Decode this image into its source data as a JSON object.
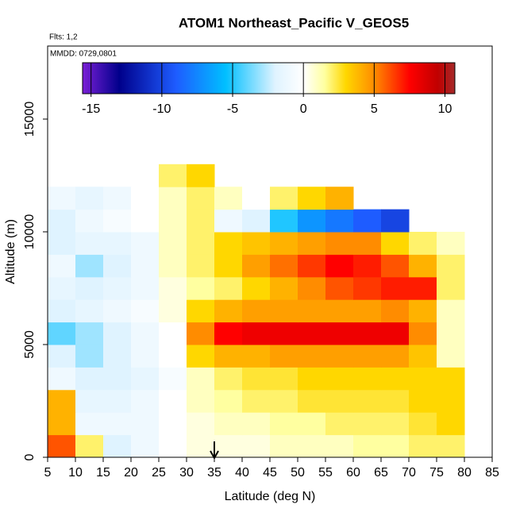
{
  "chart_data": {
    "type": "heatmap",
    "title": "ATOM1 Northeast_Pacific V_GEOS5",
    "subtitle": "Flts: 1,2",
    "annotation": "MMDD: 0729,0801",
    "x_label": "Latitude (deg N)",
    "y_label": "Altitude (m)",
    "xlim": [
      5,
      85
    ],
    "ylim": [
      0,
      18240
    ],
    "xticks": [
      5,
      10,
      15,
      20,
      25,
      30,
      35,
      40,
      45,
      50,
      55,
      60,
      65,
      70,
      75,
      80,
      85
    ],
    "yticks": [
      0,
      5000,
      10000,
      15000
    ],
    "x_bins": [
      5,
      10,
      15,
      20,
      25,
      30,
      35,
      40,
      45,
      50,
      55,
      60,
      65,
      70,
      75,
      80
    ],
    "y_bins": [
      0,
      1000,
      2000,
      3000,
      4000,
      5000,
      6000,
      7000,
      8000,
      9000,
      10000,
      11000,
      12000,
      13000
    ],
    "z": [
      [
        6,
        2,
        -2,
        -1,
        0,
        0.5,
        0.5,
        0.5,
        1,
        1,
        1,
        1.5,
        1.5,
        2,
        2
      ],
      [
        4,
        -1,
        -1,
        -1,
        0,
        0.5,
        1,
        1,
        1.5,
        1.5,
        2,
        2,
        2,
        2.5,
        3
      ],
      [
        4,
        -1.5,
        -1.5,
        -1,
        0,
        1,
        1.5,
        2,
        2,
        2.5,
        2.5,
        2.5,
        2.5,
        3,
        3
      ],
      [
        -1,
        -2,
        -2,
        -1.5,
        -0.5,
        1,
        2,
        2.5,
        2.5,
        3,
        3,
        3,
        3,
        3,
        3
      ],
      [
        -2,
        -3,
        -2,
        -1,
        0,
        3,
        4,
        4,
        4.5,
        4.5,
        4.5,
        4.5,
        4.5,
        3.5,
        1
      ],
      [
        -4,
        -3,
        -2,
        -1,
        0,
        5,
        7.5,
        8,
        8,
        8,
        8,
        8,
        8,
        5,
        1
      ],
      [
        -2,
        -1.5,
        -1,
        -0.5,
        0.5,
        3,
        4,
        4.5,
        4.5,
        4.5,
        4.5,
        4.5,
        5,
        4,
        1
      ],
      [
        -1.5,
        -2,
        -1.5,
        -1,
        0.5,
        1.5,
        2,
        3,
        4,
        5,
        6,
        6.5,
        7,
        7,
        2
      ],
      [
        -1,
        -3,
        -2,
        -1,
        1,
        2,
        3,
        4.5,
        5.5,
        6.5,
        7.5,
        7,
        6,
        4,
        2
      ],
      [
        -2,
        -1.5,
        -1.5,
        -1,
        1,
        2,
        3,
        3.5,
        4,
        4.5,
        5,
        5,
        3,
        2,
        1
      ],
      [
        -2,
        -1,
        -0.5,
        0,
        1,
        2,
        -1,
        -2,
        -5,
        -7,
        -8,
        -9,
        -10,
        null,
        null
      ],
      [
        -1,
        -1.5,
        -1,
        0,
        1,
        2,
        1,
        0,
        2,
        3,
        4,
        null,
        null,
        null,
        null
      ],
      [
        null,
        null,
        null,
        null,
        2,
        3,
        null,
        null,
        null,
        null,
        null,
        null,
        null,
        null,
        null
      ]
    ],
    "zlim": [
      -15.6,
      10.7
    ],
    "zticks": [
      -15,
      -10,
      -5,
      0,
      5,
      10
    ],
    "colorscale": [
      [
        -15.6,
        "#7a1fd6"
      ],
      [
        -13,
        "#00008b"
      ],
      [
        -9,
        "#1e5cff"
      ],
      [
        -5.5,
        "#00bfff"
      ],
      [
        -2,
        "#dff3ff"
      ],
      [
        0,
        "#ffffff"
      ],
      [
        1.5,
        "#ffffa0"
      ],
      [
        3,
        "#ffd700"
      ],
      [
        5,
        "#ff8c00"
      ],
      [
        7.5,
        "#ff0000"
      ],
      [
        9.5,
        "#c00000"
      ],
      [
        10.7,
        "#a52a2a"
      ]
    ],
    "arrow": 35
  }
}
